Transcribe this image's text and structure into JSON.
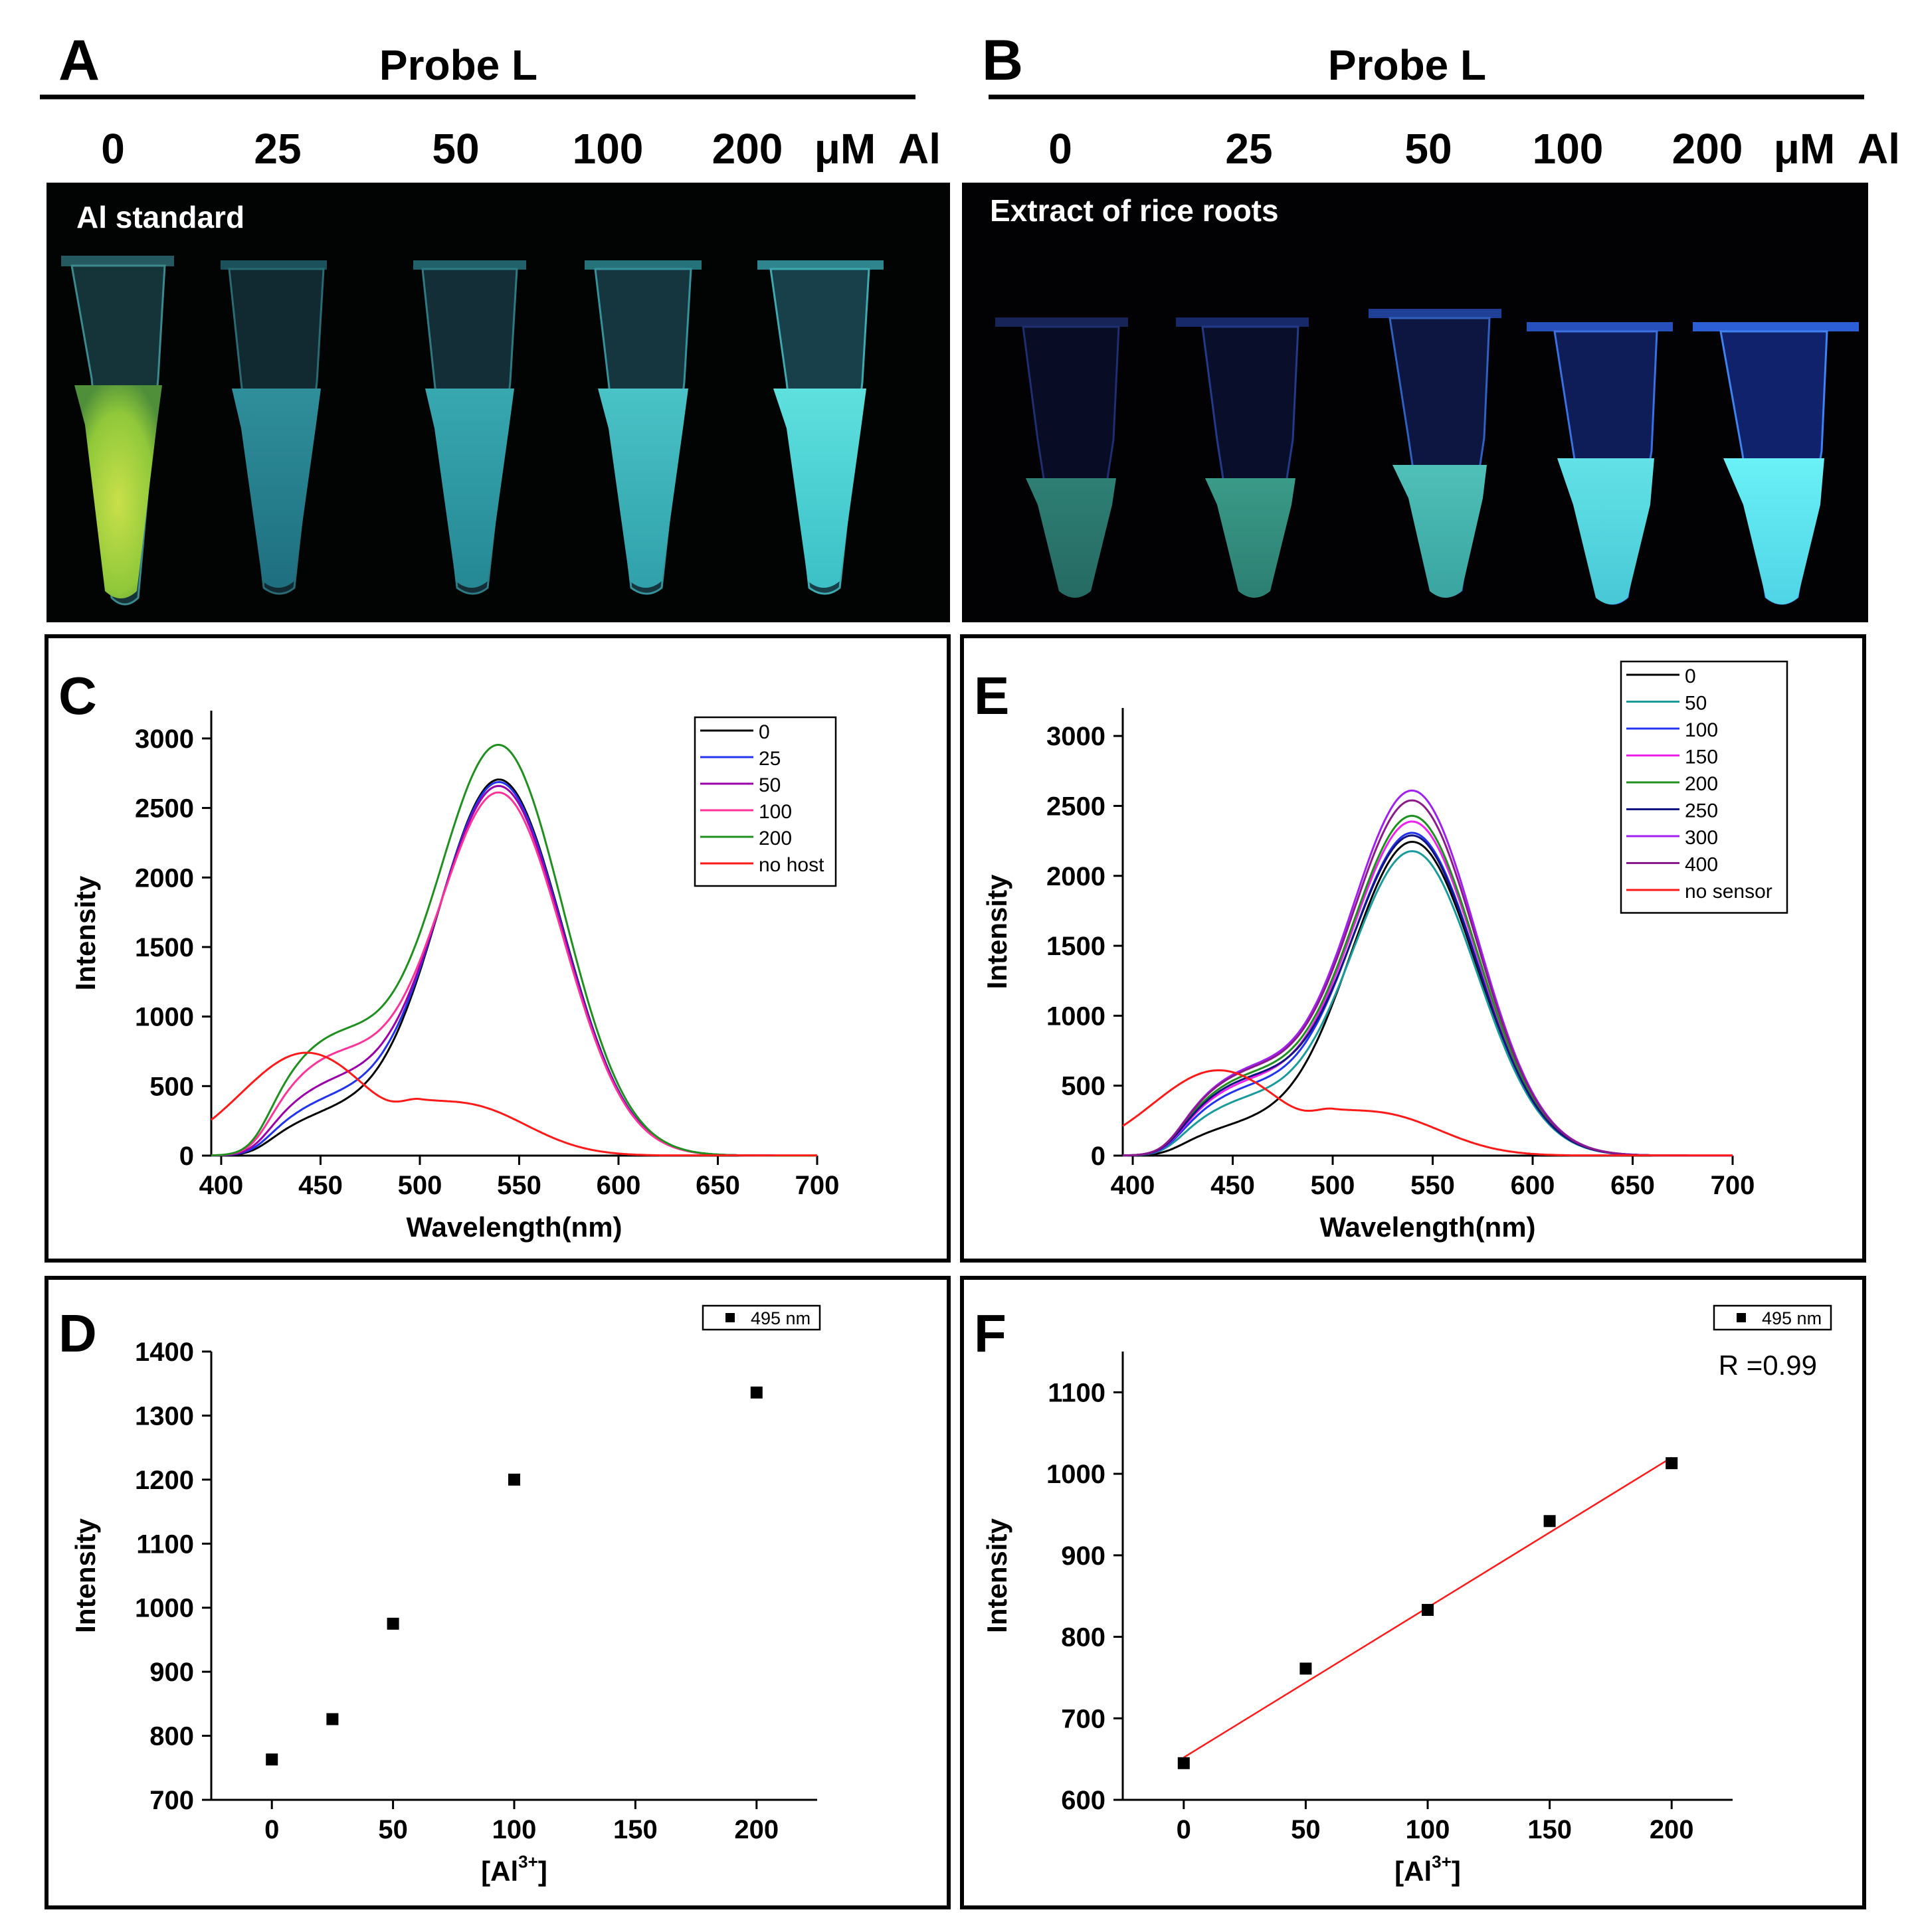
{
  "panel_a": {
    "letter": "A",
    "header": "Probe L",
    "concentrations": [
      "0",
      "25",
      "50",
      "100",
      "200"
    ],
    "unit": "μM",
    "element": "Al",
    "photo_label": "Al standard"
  },
  "panel_b": {
    "letter": "B",
    "header": "Probe L",
    "concentrations": [
      "0",
      "25",
      "50",
      "100",
      "200"
    ],
    "unit": "μM",
    "element": "Al",
    "photo_label": "Extract of rice roots"
  },
  "colors": {
    "black": "#000000",
    "teal": "#1a9b9b",
    "blue": "#2233ee",
    "magenta": "#ee22ee",
    "green": "#1f8f1f",
    "navy": "#141480",
    "violet": "#a020f0",
    "purple": "#8a1a8a",
    "red": "#ff1a1a",
    "pink": "#ff3399"
  },
  "chart_data": [
    {
      "id": "C",
      "type": "line",
      "letter": "C",
      "xlabel": "Wavelength(nm)",
      "ylabel": "Intensity",
      "xlim": [
        395,
        700
      ],
      "ylim": [
        0,
        3200
      ],
      "xticks": [
        "400",
        "450",
        "500",
        "550",
        "600",
        "650",
        "700"
      ],
      "yticks": [
        "0",
        "500",
        "1000",
        "1500",
        "2000",
        "2500",
        "3000"
      ],
      "legend_position": "top-right",
      "series": [
        {
          "name": "0",
          "color": "#000000",
          "peak": 2700,
          "shoulder": 800,
          "base": 270,
          "shift": 0
        },
        {
          "name": "25",
          "color": "#2233ee",
          "peak": 2680,
          "shoulder": 870,
          "base": 360,
          "shift": 0
        },
        {
          "name": "50",
          "color": "#9900aa",
          "peak": 2650,
          "shoulder": 980,
          "base": 470,
          "shift": 0
        },
        {
          "name": "100",
          "color": "#ff3399",
          "peak": 2600,
          "shoulder": 1240,
          "base": 650,
          "shift": 0
        },
        {
          "name": "200",
          "color": "#1f8f1f",
          "peak": 2940,
          "shoulder": 1380,
          "base": 780,
          "shift": 0
        },
        {
          "name": "no host",
          "color": "#ff1a1a",
          "peak": 740,
          "shoulder": 0,
          "base": 0,
          "shift": 0
        }
      ]
    },
    {
      "id": "E",
      "type": "line",
      "letter": "E",
      "xlabel": "Wavelength(nm)",
      "ylabel": "Intensity",
      "xlim": [
        395,
        700
      ],
      "ylim": [
        0,
        3200
      ],
      "xticks": [
        "400",
        "450",
        "500",
        "550",
        "600",
        "650",
        "700"
      ],
      "yticks": [
        "0",
        "500",
        "1000",
        "1500",
        "2000",
        "2500",
        "3000"
      ],
      "legend_position": "top-right",
      "series": [
        {
          "name": "0",
          "color": "#000000",
          "peak": 2240,
          "shoulder": 650,
          "base": 190,
          "shift": 0
        },
        {
          "name": "50",
          "color": "#1a9b9b",
          "peak": 2170,
          "shoulder": 800,
          "base": 350,
          "shift": 0
        },
        {
          "name": "100",
          "color": "#2233ee",
          "peak": 2300,
          "shoulder": 880,
          "base": 420,
          "shift": 0
        },
        {
          "name": "150",
          "color": "#ee22ee",
          "peak": 2380,
          "shoulder": 920,
          "base": 460,
          "shift": 0
        },
        {
          "name": "200",
          "color": "#1f8f1f",
          "peak": 2420,
          "shoulder": 1000,
          "base": 500,
          "shift": 0
        },
        {
          "name": "250",
          "color": "#141480",
          "peak": 2280,
          "shoulder": 950,
          "base": 480,
          "shift": 0
        },
        {
          "name": "300",
          "color": "#a020f0",
          "peak": 2600,
          "shoulder": 1100,
          "base": 540,
          "shift": 0
        },
        {
          "name": "400",
          "color": "#8a1a8a",
          "peak": 2530,
          "shoulder": 1080,
          "base": 530,
          "shift": 0
        },
        {
          "name": "no sensor",
          "color": "#ff1a1a",
          "peak": 610,
          "shoulder": 0,
          "base": 0,
          "shift": 0
        }
      ]
    },
    {
      "id": "D",
      "type": "scatter",
      "letter": "D",
      "xlabel": "[Al",
      "xlabel_sup": "3+",
      "xlabel_end": "]",
      "ylabel": "Intensity",
      "xlim": [
        -25,
        225
      ],
      "ylim": [
        700,
        1400
      ],
      "xticks": [
        "0",
        "50",
        "100",
        "150",
        "200"
      ],
      "yticks": [
        "700",
        "800",
        "900",
        "1000",
        "1100",
        "1200",
        "1300",
        "1400"
      ],
      "legend": "495 nm",
      "x": [
        0,
        25,
        50,
        100,
        200
      ],
      "y": [
        763,
        826,
        975,
        1200,
        1336
      ]
    },
    {
      "id": "F",
      "type": "scatter",
      "letter": "F",
      "xlabel": "[Al",
      "xlabel_sup": "3+",
      "xlabel_end": "]",
      "ylabel": "Intensity",
      "xlim": [
        -25,
        225
      ],
      "ylim": [
        600,
        1150
      ],
      "xticks": [
        "0",
        "50",
        "100",
        "150",
        "200"
      ],
      "yticks": [
        "600",
        "700",
        "800",
        "900",
        "1000",
        "1100"
      ],
      "legend": "495 nm",
      "annotation": "R =0.99",
      "x": [
        0,
        50,
        100,
        150,
        200
      ],
      "y": [
        645,
        761,
        833,
        942,
        1013
      ],
      "fit": {
        "x": [
          0,
          200
        ],
        "y": [
          652,
          1020
        ],
        "color": "#ff1a1a"
      }
    }
  ]
}
